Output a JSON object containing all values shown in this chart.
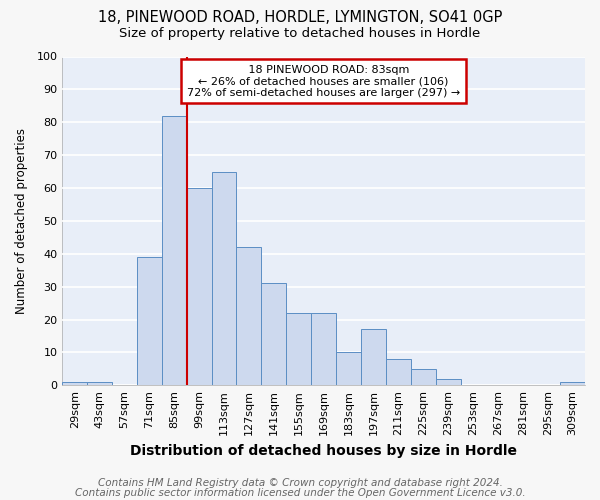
{
  "title1": "18, PINEWOOD ROAD, HORDLE, LYMINGTON, SO41 0GP",
  "title2": "Size of property relative to detached houses in Hordle",
  "xlabel": "Distribution of detached houses by size in Hordle",
  "ylabel": "Number of detached properties",
  "categories": [
    "29sqm",
    "43sqm",
    "57sqm",
    "71sqm",
    "85sqm",
    "99sqm",
    "113sqm",
    "127sqm",
    "141sqm",
    "155sqm",
    "169sqm",
    "183sqm",
    "197sqm",
    "211sqm",
    "225sqm",
    "239sqm",
    "253sqm",
    "267sqm",
    "281sqm",
    "295sqm",
    "309sqm"
  ],
  "values": [
    1,
    1,
    0,
    39,
    82,
    60,
    65,
    42,
    31,
    22,
    22,
    10,
    17,
    8,
    5,
    2,
    0,
    0,
    0,
    0,
    1
  ],
  "bar_color": "#cdd9ee",
  "bar_edge_color": "#5b8ec4",
  "red_line_index": 4,
  "annotation_text1": "18 PINEWOOD ROAD: 83sqm",
  "annotation_text2": "← 26% of detached houses are smaller (106)",
  "annotation_text3": "72% of semi-detached houses are larger (297) →",
  "annotation_box_color": "#ffffff",
  "annotation_border_color": "#cc0000",
  "red_line_color": "#cc0000",
  "ylim": [
    0,
    100
  ],
  "yticks": [
    0,
    10,
    20,
    30,
    40,
    50,
    60,
    70,
    80,
    90,
    100
  ],
  "footer1": "Contains HM Land Registry data © Crown copyright and database right 2024.",
  "footer2": "Contains public sector information licensed under the Open Government Licence v3.0.",
  "fig_background_color": "#f7f7f7",
  "plot_background_color": "#e8eef8",
  "grid_color": "#ffffff",
  "title1_fontsize": 10.5,
  "title2_fontsize": 9.5,
  "xlabel_fontsize": 10,
  "ylabel_fontsize": 8.5,
  "tick_fontsize": 8,
  "annotation_fontsize": 8,
  "footer_fontsize": 7.5
}
